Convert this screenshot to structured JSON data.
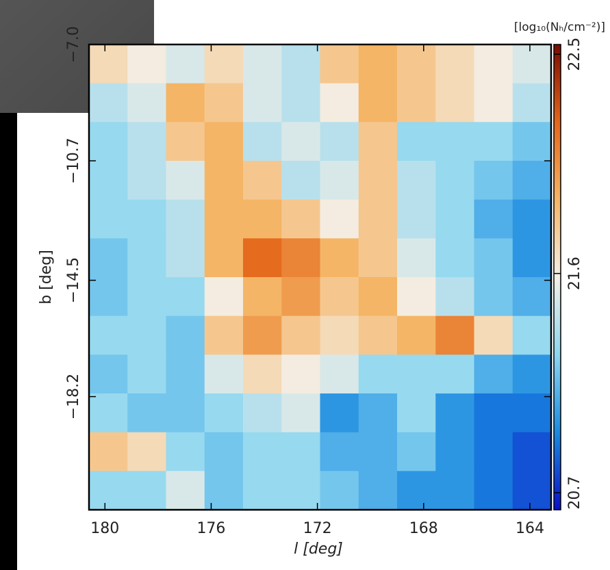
{
  "chart_data": {
    "type": "heatmap",
    "x_label": "l [deg]",
    "y_label": "b [deg]",
    "colorbar_label": "[log₁₀(Nₕ/cm⁻²)]",
    "xlim": [
      180.6,
      163.2
    ],
    "ylim": [
      -21.8,
      -7.0
    ],
    "xticks": [
      180,
      176,
      172,
      168,
      164
    ],
    "yticks": [
      {
        "value": -7.0,
        "label": "−7.0"
      },
      {
        "value": -10.7,
        "label": "−10.7"
      },
      {
        "value": -14.5,
        "label": "−14.5"
      },
      {
        "value": -18.2,
        "label": "−18.2"
      }
    ],
    "clim": [
      20.63,
      22.54
    ],
    "colorbar_ticks": [
      22.5,
      21.6,
      20.7
    ],
    "colormap": [
      "#0a10c8",
      "#1a8ae0",
      "#8cd6f0",
      "#f4efe6",
      "#f5b465",
      "#e4661a",
      "#7a0a00"
    ],
    "z": [
      [
        21.7,
        21.6,
        21.5,
        21.7,
        21.5,
        21.4,
        21.8,
        21.9,
        21.8,
        21.7,
        21.6,
        21.5
      ],
      [
        21.4,
        21.5,
        21.9,
        21.8,
        21.5,
        21.4,
        21.6,
        21.9,
        21.8,
        21.7,
        21.6,
        21.4
      ],
      [
        21.3,
        21.4,
        21.8,
        21.9,
        21.4,
        21.5,
        21.4,
        21.8,
        21.3,
        21.3,
        21.3,
        21.2
      ],
      [
        21.3,
        21.4,
        21.5,
        21.9,
        21.8,
        21.4,
        21.5,
        21.8,
        21.4,
        21.3,
        21.2,
        21.1
      ],
      [
        21.3,
        21.3,
        21.4,
        21.9,
        21.9,
        21.8,
        21.6,
        21.8,
        21.4,
        21.3,
        21.1,
        21.0
      ],
      [
        21.2,
        21.3,
        21.4,
        21.9,
        22.2,
        22.1,
        21.9,
        21.8,
        21.5,
        21.3,
        21.2,
        21.0
      ],
      [
        21.2,
        21.3,
        21.3,
        21.6,
        21.9,
        22.0,
        21.8,
        21.9,
        21.6,
        21.4,
        21.2,
        21.1
      ],
      [
        21.3,
        21.3,
        21.2,
        21.8,
        22.0,
        21.8,
        21.7,
        21.8,
        21.9,
        22.1,
        21.7,
        21.3
      ],
      [
        21.2,
        21.3,
        21.2,
        21.5,
        21.7,
        21.6,
        21.5,
        21.3,
        21.3,
        21.3,
        21.1,
        21.0
      ],
      [
        21.3,
        21.2,
        21.2,
        21.3,
        21.4,
        21.5,
        21.0,
        21.1,
        21.3,
        21.0,
        20.9,
        20.9
      ],
      [
        21.8,
        21.7,
        21.3,
        21.2,
        21.3,
        21.3,
        21.1,
        21.1,
        21.2,
        21.0,
        20.9,
        20.8
      ],
      [
        21.3,
        21.3,
        21.5,
        21.2,
        21.3,
        21.3,
        21.2,
        21.1,
        21.0,
        21.0,
        20.9,
        20.8
      ]
    ]
  }
}
